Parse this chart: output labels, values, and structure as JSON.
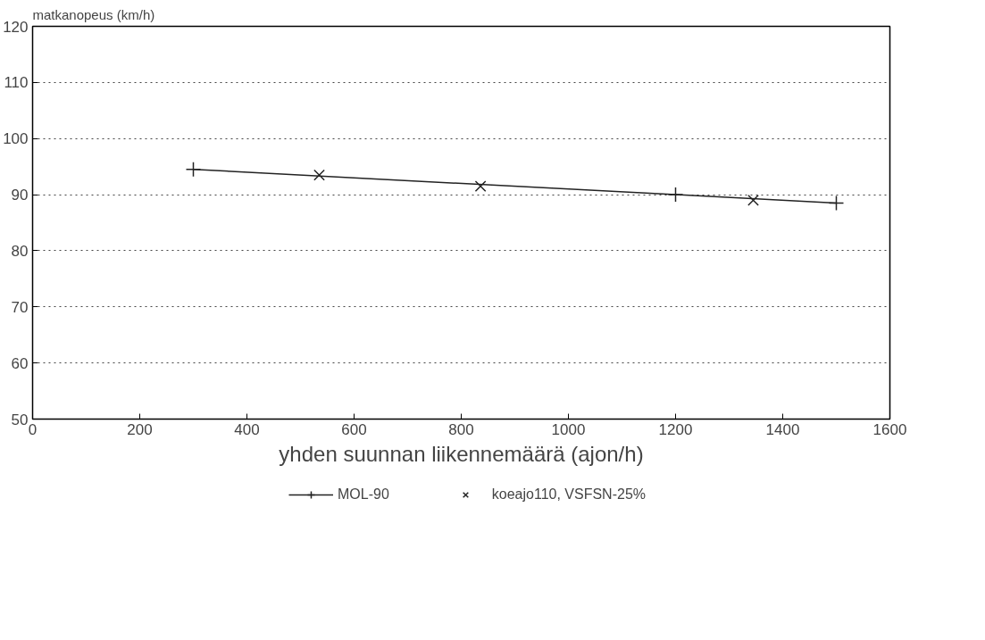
{
  "chart_data": {
    "type": "line",
    "ylabel": "matkanopeus (km/h)",
    "xlabel": "yhden suunnan liikennemäärä (ajon/h)",
    "xlim": [
      0,
      1600
    ],
    "xticks": [
      0,
      200,
      400,
      600,
      800,
      1000,
      1200,
      1400,
      1600
    ],
    "ylim": [
      50,
      120
    ],
    "yticks": [
      50,
      60,
      70,
      80,
      90,
      100,
      110,
      120
    ],
    "grid": "y",
    "legend": "bottom",
    "series": [
      {
        "name": "MOL-90",
        "marker": "cross",
        "color": "#222222",
        "x": [
          300,
          1200,
          1500
        ],
        "values": [
          94.5,
          90,
          88.5
        ]
      },
      {
        "name": "koeajo110, VSFSN-25%",
        "type": "scatter",
        "marker": "x",
        "color": "#222222",
        "x": [
          535,
          836,
          1345
        ],
        "values": [
          93.5,
          91.5,
          89
        ]
      }
    ]
  }
}
